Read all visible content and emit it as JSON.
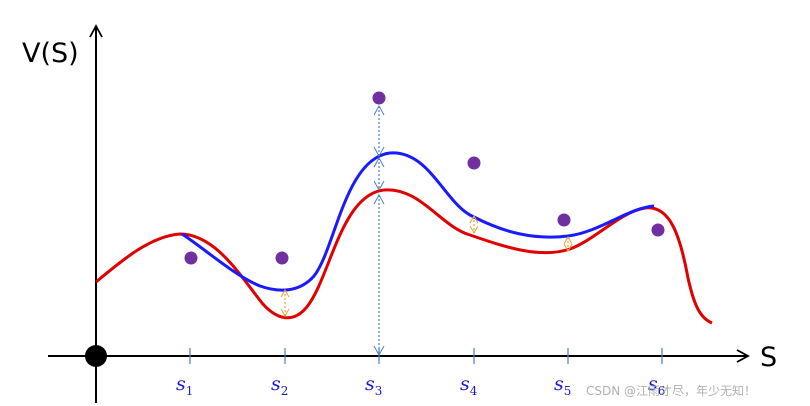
{
  "axes": {
    "y_label": "V(S)",
    "x_label": "S"
  },
  "states": [
    {
      "base": "s",
      "sub": "1"
    },
    {
      "base": "s",
      "sub": "2"
    },
    {
      "base": "s",
      "sub": "3"
    },
    {
      "base": "s",
      "sub": "4"
    },
    {
      "base": "s",
      "sub": "5"
    },
    {
      "base": "s",
      "sub": "6"
    }
  ],
  "colors": {
    "true_curve": "#e00000",
    "estimate_curve": "#1a1aff",
    "targets": "#7030a0",
    "arrows_large": "#4a7fbf",
    "arrows_small": "#f0a030",
    "tick_labels": "#1a1acc"
  },
  "watermark": "CSDN @江雨才尽，年少无知！"
}
